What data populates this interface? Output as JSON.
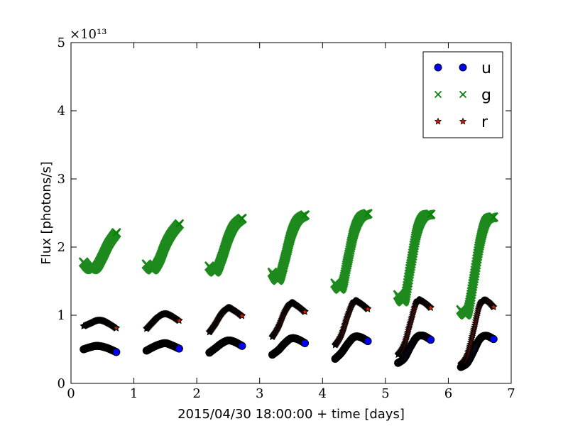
{
  "chart_data": {
    "type": "scatter",
    "title": "",
    "xlabel": "2015/04/30 18:00:00 + time [days]",
    "ylabel": "Flux [photons/s]",
    "xlim": [
      0,
      7
    ],
    "ylim": [
      0,
      50000000000000.0
    ],
    "xticks": [
      0,
      1,
      2,
      3,
      4,
      5,
      6,
      7
    ],
    "yticks": [
      0,
      1,
      2,
      3,
      4,
      5
    ],
    "y_scale_label": "×10¹³",
    "y_scale_factor": 10000000000000.0,
    "legend_position": "top-right",
    "grid": false,
    "series": [
      {
        "name": "u",
        "marker": "circle",
        "color": "#0000ff",
        "segments": [
          {
            "x": [
              0.2,
              0.3,
              0.4,
              0.5,
              0.6,
              0.72
            ],
            "y": [
              0.5,
              0.53,
              0.55,
              0.54,
              0.51,
              0.46
            ]
          },
          {
            "x": [
              1.2,
              1.3,
              1.4,
              1.5,
              1.6,
              1.72
            ],
            "y": [
              0.48,
              0.53,
              0.57,
              0.59,
              0.56,
              0.51
            ]
          },
          {
            "x": [
              2.2,
              2.3,
              2.4,
              2.5,
              2.6,
              2.72
            ],
            "y": [
              0.45,
              0.52,
              0.59,
              0.63,
              0.61,
              0.55
            ]
          },
          {
            "x": [
              3.2,
              3.3,
              3.4,
              3.5,
              3.6,
              3.72
            ],
            "y": [
              0.42,
              0.49,
              0.59,
              0.66,
              0.65,
              0.59
            ]
          },
          {
            "x": [
              4.2,
              4.3,
              4.4,
              4.5,
              4.6,
              4.72
            ],
            "y": [
              0.36,
              0.45,
              0.58,
              0.68,
              0.68,
              0.62
            ]
          },
          {
            "x": [
              5.2,
              5.3,
              5.4,
              5.5,
              5.6,
              5.72
            ],
            "y": [
              0.3,
              0.37,
              0.54,
              0.68,
              0.7,
              0.64
            ]
          },
          {
            "x": [
              6.2,
              6.3,
              6.4,
              6.5,
              6.6,
              6.72
            ],
            "y": [
              0.24,
              0.3,
              0.47,
              0.65,
              0.7,
              0.65
            ]
          }
        ]
      },
      {
        "name": "g",
        "marker": "x",
        "color": "#008000",
        "segments": [
          {
            "x": [
              0.2,
              0.3,
              0.4,
              0.5,
              0.6,
              0.72
            ],
            "y": [
              1.78,
              1.68,
              1.7,
              1.86,
              2.05,
              2.21
            ]
          },
          {
            "x": [
              1.2,
              1.3,
              1.4,
              1.5,
              1.6,
              1.72
            ],
            "y": [
              1.75,
              1.67,
              1.8,
              2.03,
              2.2,
              2.34
            ]
          },
          {
            "x": [
              2.2,
              2.3,
              2.4,
              2.5,
              2.6,
              2.72
            ],
            "y": [
              1.72,
              1.64,
              1.85,
              2.13,
              2.32,
              2.42
            ]
          },
          {
            "x": [
              3.2,
              3.3,
              3.4,
              3.5,
              3.6,
              3.72
            ],
            "y": [
              1.63,
              1.52,
              1.82,
              2.18,
              2.39,
              2.47
            ]
          },
          {
            "x": [
              4.2,
              4.3,
              4.4,
              4.5,
              4.6,
              4.72
            ],
            "y": [
              1.47,
              1.4,
              1.8,
              2.22,
              2.43,
              2.49
            ]
          },
          {
            "x": [
              5.2,
              5.3,
              5.4,
              5.5,
              5.6,
              5.72
            ],
            "y": [
              1.3,
              1.22,
              1.72,
              2.22,
              2.44,
              2.48
            ]
          },
          {
            "x": [
              6.2,
              6.3,
              6.4,
              6.5,
              6.6,
              6.72
            ],
            "y": [
              1.08,
              1.03,
              1.5,
              2.05,
              2.38,
              2.44
            ]
          }
        ]
      },
      {
        "name": "r",
        "marker": "star",
        "color": "#cc2200",
        "segments": [
          {
            "x": [
              0.2,
              0.3,
              0.4,
              0.5,
              0.6,
              0.72
            ],
            "y": [
              0.84,
              0.88,
              0.92,
              0.92,
              0.88,
              0.81
            ]
          },
          {
            "x": [
              1.2,
              1.3,
              1.4,
              1.5,
              1.6,
              1.72
            ],
            "y": [
              0.8,
              0.9,
              0.99,
              1.02,
              0.99,
              0.92
            ]
          },
          {
            "x": [
              2.2,
              2.3,
              2.4,
              2.5,
              2.6,
              2.72
            ],
            "y": [
              0.75,
              0.88,
              1.03,
              1.11,
              1.07,
              0.99
            ]
          },
          {
            "x": [
              3.2,
              3.3,
              3.4,
              3.5,
              3.6,
              3.72
            ],
            "y": [
              0.68,
              0.83,
              1.05,
              1.18,
              1.14,
              1.05
            ]
          },
          {
            "x": [
              4.2,
              4.3,
              4.4,
              4.5,
              4.6,
              4.72
            ],
            "y": [
              0.56,
              0.71,
              0.99,
              1.2,
              1.18,
              1.09
            ]
          },
          {
            "x": [
              5.2,
              5.3,
              5.4,
              5.5,
              5.6,
              5.72
            ],
            "y": [
              0.42,
              0.57,
              0.9,
              1.2,
              1.2,
              1.11
            ]
          },
          {
            "x": [
              6.2,
              6.3,
              6.4,
              6.5,
              6.6,
              6.72
            ],
            "y": [
              0.28,
              0.41,
              0.77,
              1.15,
              1.22,
              1.12
            ]
          }
        ]
      }
    ]
  }
}
